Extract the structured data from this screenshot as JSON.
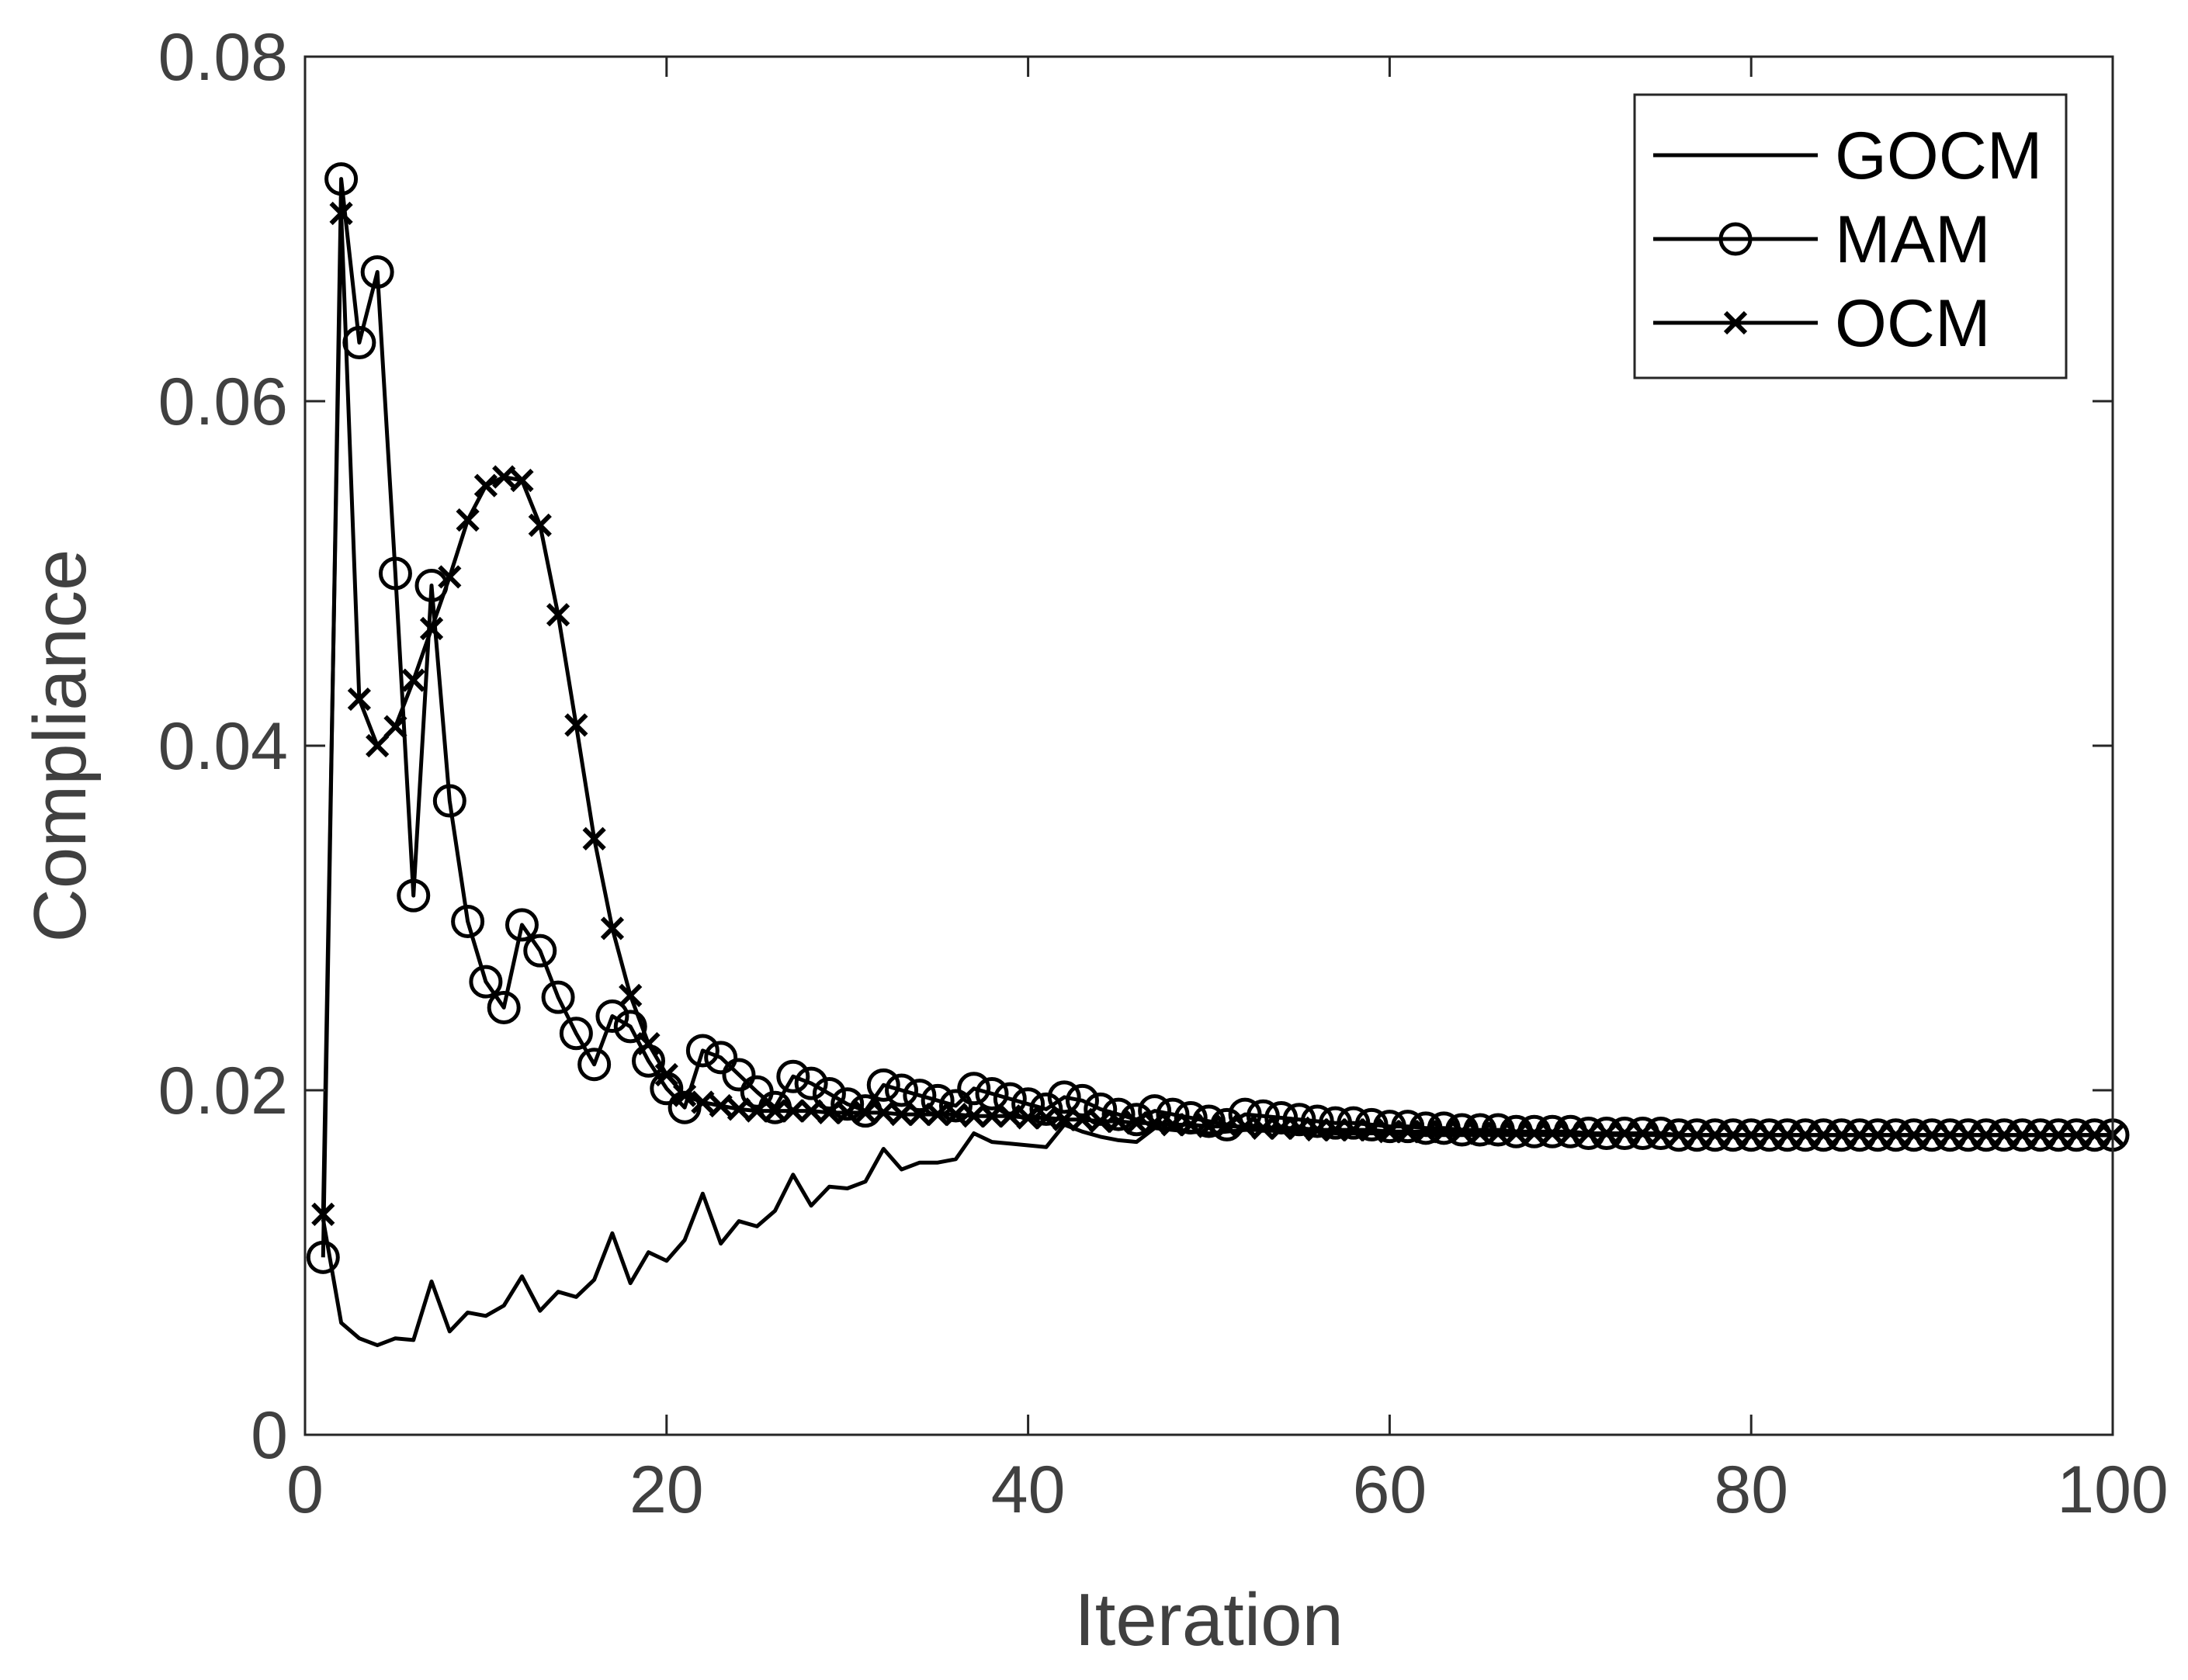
{
  "chart_data": {
    "type": "line",
    "title": "",
    "xlabel": "Iteration",
    "ylabel": "Compliance",
    "xlim": [
      0,
      100
    ],
    "ylim": [
      0,
      0.08
    ],
    "xticks": [
      0,
      20,
      40,
      60,
      80,
      100
    ],
    "xtick_labels": [
      "0",
      "20",
      "40",
      "60",
      "80",
      "100"
    ],
    "yticks": [
      0,
      0.02,
      0.04,
      0.06,
      0.08
    ],
    "ytick_labels": [
      "0",
      "0.02",
      "0.04",
      "0.06",
      "0.08"
    ],
    "grid": false,
    "legend_position": "top-right",
    "colors": {
      "line": "#000000",
      "tick_text": "#404040",
      "background": "#ffffff"
    },
    "series": [
      {
        "name": "GOCM",
        "marker": "none",
        "x": [
          1,
          2,
          3,
          4,
          5,
          6,
          7,
          8,
          9,
          10,
          11,
          12,
          13,
          14,
          15,
          16,
          17,
          18,
          19,
          20,
          21,
          22,
          23,
          24,
          25,
          26,
          27,
          28,
          29,
          30,
          31,
          32,
          33,
          34,
          35,
          36,
          37,
          38,
          39,
          40,
          41,
          42,
          43,
          44,
          45,
          46,
          47,
          48,
          49,
          50,
          51,
          52,
          53,
          54,
          55,
          56,
          57,
          58,
          59,
          60,
          61,
          62,
          63,
          64,
          65,
          66,
          67,
          68,
          69,
          70,
          71,
          72,
          73,
          74,
          75,
          76,
          77,
          78,
          79,
          80,
          81,
          82,
          83,
          84,
          85,
          86,
          87,
          88,
          89,
          90,
          91,
          92,
          93,
          94,
          95,
          96,
          97,
          98,
          99,
          100
        ],
        "values": [
          0.0125,
          0.0065,
          0.0056,
          0.0052,
          0.0056,
          0.0055,
          0.0089,
          0.006,
          0.0071,
          0.0069,
          0.0075,
          0.0092,
          0.0072,
          0.0083,
          0.008,
          0.009,
          0.0117,
          0.0088,
          0.0106,
          0.0101,
          0.0113,
          0.014,
          0.0111,
          0.0124,
          0.0121,
          0.013,
          0.0151,
          0.0133,
          0.0144,
          0.0143,
          0.0147,
          0.0166,
          0.0154,
          0.0158,
          0.0158,
          0.016,
          0.0175,
          0.017,
          0.0169,
          0.0168,
          0.0167,
          0.018,
          0.0176,
          0.0173,
          0.0171,
          0.017,
          0.0178,
          0.0177,
          0.0176,
          0.0175,
          0.0176,
          0.0177,
          0.0177,
          0.0176,
          0.0176,
          0.0176,
          0.0175,
          0.0175,
          0.0175,
          0.0175,
          0.0175,
          0.0174,
          0.0174,
          0.0174,
          0.0174,
          0.0174,
          0.0174,
          0.0174,
          0.0174,
          0.0174,
          0.0174,
          0.0174,
          0.0174,
          0.0174,
          0.0174,
          0.0174,
          0.0174,
          0.0174,
          0.0174,
          0.0174,
          0.0174,
          0.0174,
          0.0174,
          0.0174,
          0.0174,
          0.0174,
          0.0174,
          0.0174,
          0.0174,
          0.0174,
          0.0174,
          0.0174,
          0.0174,
          0.0174,
          0.0174,
          0.0174,
          0.0174,
          0.0174,
          0.0174,
          0.0174
        ]
      },
      {
        "name": "MAM",
        "marker": "circle",
        "x": [
          1,
          2,
          3,
          4,
          5,
          6,
          7,
          8,
          9,
          10,
          11,
          12,
          13,
          14,
          15,
          16,
          17,
          18,
          19,
          20,
          21,
          22,
          23,
          24,
          25,
          26,
          27,
          28,
          29,
          30,
          31,
          32,
          33,
          34,
          35,
          36,
          37,
          38,
          39,
          40,
          41,
          42,
          43,
          44,
          45,
          46,
          47,
          48,
          49,
          50,
          51,
          52,
          53,
          54,
          55,
          56,
          57,
          58,
          59,
          60,
          61,
          62,
          63,
          64,
          65,
          66,
          67,
          68,
          69,
          70,
          71,
          72,
          73,
          74,
          75,
          76,
          77,
          78,
          79,
          80,
          81,
          82,
          83,
          84,
          85,
          86,
          87,
          88,
          89,
          90,
          91,
          92,
          93,
          94,
          95,
          96,
          97,
          98,
          99,
          100
        ],
        "values": [
          0.0103,
          0.0729,
          0.0634,
          0.0675,
          0.05,
          0.0313,
          0.0493,
          0.0368,
          0.0298,
          0.0263,
          0.0248,
          0.0296,
          0.0281,
          0.0254,
          0.0233,
          0.0215,
          0.0243,
          0.0237,
          0.0217,
          0.0201,
          0.019,
          0.0223,
          0.0219,
          0.0209,
          0.0199,
          0.019,
          0.0208,
          0.0204,
          0.0198,
          0.0192,
          0.0188,
          0.0203,
          0.02,
          0.0197,
          0.0194,
          0.0191,
          0.0201,
          0.0198,
          0.0195,
          0.0192,
          0.0189,
          0.0196,
          0.0194,
          0.0189,
          0.0186,
          0.0183,
          0.0188,
          0.0186,
          0.0184,
          0.0182,
          0.018,
          0.0186,
          0.0185,
          0.0184,
          0.0183,
          0.0182,
          0.0181,
          0.0181,
          0.018,
          0.0179,
          0.0179,
          0.0178,
          0.0178,
          0.0177,
          0.0177,
          0.0177,
          0.0176,
          0.0176,
          0.0176,
          0.0176,
          0.0175,
          0.0175,
          0.0175,
          0.0175,
          0.0175,
          0.0174,
          0.0174,
          0.0174,
          0.0174,
          0.0174,
          0.0174,
          0.0174,
          0.0174,
          0.0174,
          0.0174,
          0.0174,
          0.0174,
          0.0174,
          0.0174,
          0.0174,
          0.0174,
          0.0174,
          0.0174,
          0.0174,
          0.0174,
          0.0174,
          0.0174,
          0.0174,
          0.0174,
          0.0174
        ]
      },
      {
        "name": "OCM",
        "marker": "x",
        "x": [
          1,
          2,
          3,
          4,
          5,
          6,
          7,
          8,
          9,
          10,
          11,
          12,
          13,
          14,
          15,
          16,
          17,
          18,
          19,
          20,
          21,
          22,
          23,
          24,
          25,
          26,
          27,
          28,
          29,
          30,
          31,
          32,
          33,
          34,
          35,
          36,
          37,
          38,
          39,
          40,
          41,
          42,
          43,
          44,
          45,
          46,
          47,
          48,
          49,
          50,
          51,
          52,
          53,
          54,
          55,
          56,
          57,
          58,
          59,
          60,
          61,
          62,
          63,
          64,
          65,
          66,
          67,
          68,
          69,
          70,
          71,
          72,
          73,
          74,
          75,
          76,
          77,
          78,
          79,
          80,
          81,
          82,
          83,
          84,
          85,
          86,
          87,
          88,
          89,
          90,
          91,
          92,
          93,
          94,
          95,
          96,
          97,
          98,
          99,
          100
        ],
        "values": [
          0.0128,
          0.0709,
          0.0427,
          0.04,
          0.0411,
          0.0438,
          0.0468,
          0.0498,
          0.0531,
          0.0551,
          0.0556,
          0.0554,
          0.0528,
          0.0476,
          0.0412,
          0.0346,
          0.0294,
          0.0255,
          0.0227,
          0.0209,
          0.0197,
          0.0193,
          0.0191,
          0.0189,
          0.0188,
          0.0188,
          0.0188,
          0.0188,
          0.0187,
          0.0187,
          0.0187,
          0.0187,
          0.0186,
          0.0186,
          0.0186,
          0.0186,
          0.0185,
          0.0185,
          0.0185,
          0.0184,
          0.0184,
          0.0183,
          0.0183,
          0.0182,
          0.0182,
          0.0181,
          0.0181,
          0.018,
          0.018,
          0.0179,
          0.0179,
          0.0179,
          0.0178,
          0.0178,
          0.0178,
          0.0177,
          0.0177,
          0.0177,
          0.0177,
          0.0176,
          0.0176,
          0.0176,
          0.0176,
          0.0176,
          0.0175,
          0.0175,
          0.0175,
          0.0175,
          0.0175,
          0.0175,
          0.0175,
          0.0175,
          0.0175,
          0.0175,
          0.0174,
          0.0174,
          0.0174,
          0.0174,
          0.0174,
          0.0174,
          0.0174,
          0.0174,
          0.0174,
          0.0174,
          0.0174,
          0.0174,
          0.0174,
          0.0174,
          0.0174,
          0.0174,
          0.0174,
          0.0174,
          0.0174,
          0.0174,
          0.0174,
          0.0174,
          0.0174,
          0.0174,
          0.0174,
          0.0174
        ]
      }
    ]
  }
}
